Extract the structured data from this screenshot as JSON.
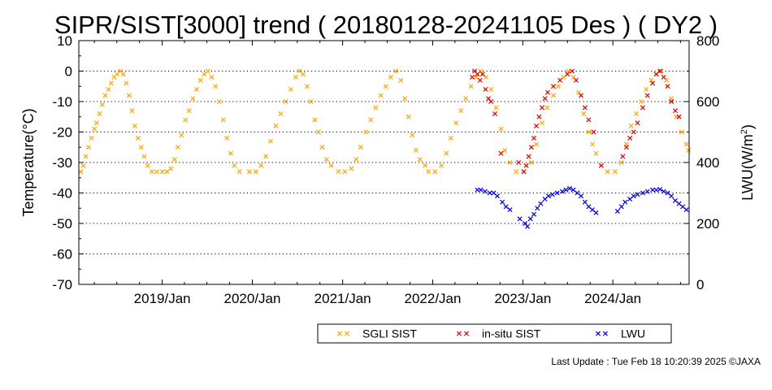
{
  "chart_data": {
    "type": "scatter",
    "title": "SIPR/SIST[3000] trend ( 20180128-20241105 Des ) ( DY2 )",
    "ylabel": "Temperature(°C)",
    "y2label_main": "LWU(W/m",
    "y2label_sup": "2",
    "y2label_end": ")",
    "ylim": [
      -70,
      10
    ],
    "y2lim": [
      0,
      800
    ],
    "xlim": [
      "2018-01-28",
      "2024-11-05"
    ],
    "yticks": [
      "10",
      "0",
      "-10",
      "-20",
      "-30",
      "-40",
      "-50",
      "-60",
      "-70"
    ],
    "y2ticks": [
      "800",
      "600",
      "400",
      "200",
      "0"
    ],
    "xticks": [
      "2019/Jan",
      "2020/Jan",
      "2021/Jan",
      "2022/Jan",
      "2023/Jan",
      "2024/Jan"
    ],
    "grid": true,
    "legend_position": "bottom",
    "series": [
      {
        "name": "SGLI SIST",
        "color": "#ffa500",
        "axis": "left",
        "points": [
          [
            "2018-02-05",
            -33
          ],
          [
            "2018-02-15",
            -31
          ],
          [
            "2018-02-25",
            -28
          ],
          [
            "2018-03-08",
            -25
          ],
          [
            "2018-03-20",
            -22
          ],
          [
            "2018-04-01",
            -19
          ],
          [
            "2018-04-10",
            -17
          ],
          [
            "2018-04-22",
            -14
          ],
          [
            "2018-05-03",
            -11
          ],
          [
            "2018-05-15",
            -8
          ],
          [
            "2018-05-28",
            -6
          ],
          [
            "2018-06-08",
            -4
          ],
          [
            "2018-06-20",
            -2
          ],
          [
            "2018-07-02",
            -1
          ],
          [
            "2018-07-15",
            0
          ],
          [
            "2018-07-27",
            -1
          ],
          [
            "2018-08-08",
            -4
          ],
          [
            "2018-08-20",
            -8
          ],
          [
            "2018-09-01",
            -13
          ],
          [
            "2018-09-12",
            -18
          ],
          [
            "2018-09-25",
            -22
          ],
          [
            "2018-10-08",
            -25
          ],
          [
            "2018-10-20",
            -28
          ],
          [
            "2018-11-03",
            -31
          ],
          [
            "2018-11-20",
            -33
          ],
          [
            "2018-12-10",
            -33
          ],
          [
            "2019-01-02",
            -33
          ],
          [
            "2019-01-20",
            -33
          ],
          [
            "2019-02-05",
            -32
          ],
          [
            "2019-02-20",
            -29
          ],
          [
            "2019-03-05",
            -25
          ],
          [
            "2019-03-20",
            -21
          ],
          [
            "2019-04-05",
            -16
          ],
          [
            "2019-04-20",
            -13
          ],
          [
            "2019-05-05",
            -9
          ],
          [
            "2019-05-20",
            -6
          ],
          [
            "2019-06-05",
            -3
          ],
          [
            "2019-06-20",
            -1
          ],
          [
            "2019-07-05",
            0
          ],
          [
            "2019-07-20",
            -2
          ],
          [
            "2019-08-05",
            -5
          ],
          [
            "2019-08-20",
            -10
          ],
          [
            "2019-09-05",
            -16
          ],
          [
            "2019-09-20",
            -22
          ],
          [
            "2019-10-05",
            -27
          ],
          [
            "2019-10-20",
            -31
          ],
          [
            "2019-11-10",
            -33
          ],
          [
            "2019-12-20",
            -33
          ],
          [
            "2020-01-15",
            -33
          ],
          [
            "2020-02-05",
            -31
          ],
          [
            "2020-02-25",
            -28
          ],
          [
            "2020-03-15",
            -23
          ],
          [
            "2020-04-05",
            -18
          ],
          [
            "2020-04-25",
            -14
          ],
          [
            "2020-05-15",
            -10
          ],
          [
            "2020-06-05",
            -6
          ],
          [
            "2020-06-25",
            -2
          ],
          [
            "2020-07-10",
            0
          ],
          [
            "2020-07-25",
            -1
          ],
          [
            "2020-08-10",
            -5
          ],
          [
            "2020-08-25",
            -10
          ],
          [
            "2020-09-10",
            -16
          ],
          [
            "2020-09-25",
            -20
          ],
          [
            "2020-10-10",
            -25
          ],
          [
            "2020-10-28",
            -29
          ],
          [
            "2020-11-15",
            -31
          ],
          [
            "2020-12-15",
            -33
          ],
          [
            "2021-01-10",
            -33
          ],
          [
            "2021-02-05",
            -32
          ],
          [
            "2021-02-25",
            -29
          ],
          [
            "2021-03-15",
            -25
          ],
          [
            "2021-04-05",
            -20
          ],
          [
            "2021-04-25",
            -16
          ],
          [
            "2021-05-15",
            -12
          ],
          [
            "2021-06-05",
            -8
          ],
          [
            "2021-06-25",
            -5
          ],
          [
            "2021-07-15",
            -2
          ],
          [
            "2021-08-05",
            0
          ],
          [
            "2021-08-25",
            -3
          ],
          [
            "2021-09-10",
            -9
          ],
          [
            "2021-09-25",
            -15
          ],
          [
            "2021-10-10",
            -21
          ],
          [
            "2021-10-25",
            -26
          ],
          [
            "2021-11-10",
            -29
          ],
          [
            "2021-12-01",
            -31
          ],
          [
            "2021-12-15",
            -33
          ],
          [
            "2022-01-10",
            -33
          ],
          [
            "2022-02-05",
            -31
          ],
          [
            "2022-02-25",
            -27
          ],
          [
            "2022-03-15",
            -22
          ],
          [
            "2022-04-05",
            -17
          ],
          [
            "2022-04-25",
            -13
          ],
          [
            "2022-05-15",
            -9
          ],
          [
            "2022-06-05",
            -5
          ],
          [
            "2022-06-25",
            -2
          ],
          [
            "2022-07-15",
            0
          ],
          [
            "2022-08-05",
            -2
          ],
          [
            "2022-08-25",
            -6
          ],
          [
            "2022-09-15",
            -12
          ],
          [
            "2022-10-05",
            -19
          ],
          [
            "2022-10-20",
            -26
          ],
          [
            "2022-11-10",
            -30
          ],
          [
            "2022-12-05",
            -33
          ],
          [
            "2023-01-05",
            -33
          ],
          [
            "2023-02-05",
            -30
          ],
          [
            "2023-02-25",
            -24
          ],
          [
            "2023-03-20",
            -17
          ],
          [
            "2023-04-10",
            -12
          ],
          [
            "2023-05-05",
            -8
          ],
          [
            "2023-05-25",
            -5
          ],
          [
            "2023-06-15",
            -2
          ],
          [
            "2023-07-05",
            0
          ],
          [
            "2023-07-25",
            -2
          ],
          [
            "2023-08-15",
            -7
          ],
          [
            "2023-09-05",
            -14
          ],
          [
            "2023-09-25",
            -20
          ],
          [
            "2023-10-10",
            -24
          ],
          [
            "2023-10-25",
            -27
          ],
          [
            "2023-11-15",
            -31
          ],
          [
            "2023-12-10",
            -33
          ],
          [
            "2024-01-10",
            -33
          ],
          [
            "2024-02-05",
            -30
          ],
          [
            "2024-02-25",
            -24
          ],
          [
            "2024-03-15",
            -18
          ],
          [
            "2024-04-05",
            -14
          ],
          [
            "2024-04-25",
            -10
          ],
          [
            "2024-05-15",
            -6
          ],
          [
            "2024-06-05",
            -3
          ],
          [
            "2024-06-25",
            -1
          ],
          [
            "2024-07-15",
            0
          ],
          [
            "2024-08-05",
            -3
          ],
          [
            "2024-08-25",
            -9
          ],
          [
            "2024-09-15",
            -15
          ],
          [
            "2024-10-05",
            -20
          ],
          [
            "2024-10-25",
            -24
          ],
          [
            "2024-11-03",
            -26
          ]
        ]
      },
      {
        "name": "in-situ SIST",
        "color": "#e00000",
        "axis": "left",
        "points": [
          [
            "2022-06-10",
            -2
          ],
          [
            "2022-06-20",
            0
          ],
          [
            "2022-07-01",
            -1
          ],
          [
            "2022-07-12",
            -3
          ],
          [
            "2022-07-22",
            -1
          ],
          [
            "2022-08-03",
            -6
          ],
          [
            "2022-08-15",
            -9
          ],
          [
            "2022-08-25",
            -10
          ],
          [
            "2022-09-10",
            -14
          ],
          [
            "2022-10-05",
            -27
          ],
          [
            "2022-12-15",
            -30
          ],
          [
            "2023-01-05",
            -33
          ],
          [
            "2023-01-15",
            -31
          ],
          [
            "2023-01-25",
            -28
          ],
          [
            "2023-02-05",
            -25
          ],
          [
            "2023-02-15",
            -22
          ],
          [
            "2023-02-25",
            -18
          ],
          [
            "2023-03-08",
            -15
          ],
          [
            "2023-03-20",
            -12
          ],
          [
            "2023-04-01",
            -9
          ],
          [
            "2023-04-12",
            -7
          ],
          [
            "2023-05-05",
            -5
          ],
          [
            "2023-06-01",
            -3
          ],
          [
            "2023-07-01",
            -1
          ],
          [
            "2023-07-20",
            0
          ],
          [
            "2023-08-05",
            -3
          ],
          [
            "2023-08-25",
            -8
          ],
          [
            "2023-09-10",
            -12
          ],
          [
            "2023-09-25",
            -16
          ],
          [
            "2023-10-15",
            -20
          ],
          [
            "2023-11-15",
            -31
          ],
          [
            "2024-02-10",
            -28
          ],
          [
            "2024-02-25",
            -25
          ],
          [
            "2024-03-10",
            -22
          ],
          [
            "2024-03-25",
            -20
          ],
          [
            "2024-04-10",
            -17
          ],
          [
            "2024-05-01",
            -12
          ],
          [
            "2024-05-20",
            -8
          ],
          [
            "2024-06-10",
            -4
          ],
          [
            "2024-06-25",
            -1
          ],
          [
            "2024-07-10",
            0
          ],
          [
            "2024-07-25",
            -2
          ],
          [
            "2024-08-10",
            -5
          ],
          [
            "2024-08-25",
            -10
          ],
          [
            "2024-09-10",
            -13
          ],
          [
            "2024-09-25",
            -15
          ]
        ]
      },
      {
        "name": "LWU",
        "color": "#0000dd",
        "axis": "right",
        "points": [
          [
            "2022-07-01",
            310
          ],
          [
            "2022-07-15",
            310
          ],
          [
            "2022-08-01",
            305
          ],
          [
            "2022-08-20",
            300
          ],
          [
            "2022-09-05",
            300
          ],
          [
            "2022-09-20",
            290
          ],
          [
            "2022-10-10",
            270
          ],
          [
            "2022-10-25",
            255
          ],
          [
            "2022-11-10",
            245
          ],
          [
            "2022-12-20",
            215
          ],
          [
            "2023-01-10",
            200
          ],
          [
            "2023-01-20",
            190
          ],
          [
            "2023-02-01",
            215
          ],
          [
            "2023-02-15",
            230
          ],
          [
            "2023-03-01",
            250
          ],
          [
            "2023-03-15",
            265
          ],
          [
            "2023-04-01",
            280
          ],
          [
            "2023-04-15",
            290
          ],
          [
            "2023-05-01",
            295
          ],
          [
            "2023-05-20",
            300
          ],
          [
            "2023-06-10",
            305
          ],
          [
            "2023-06-25",
            310
          ],
          [
            "2023-07-10",
            315
          ],
          [
            "2023-07-25",
            310
          ],
          [
            "2023-08-10",
            300
          ],
          [
            "2023-08-25",
            290
          ],
          [
            "2023-09-10",
            270
          ],
          [
            "2023-09-25",
            255
          ],
          [
            "2023-10-10",
            245
          ],
          [
            "2023-10-25",
            235
          ],
          [
            "2024-01-20",
            240
          ],
          [
            "2024-02-05",
            255
          ],
          [
            "2024-02-20",
            270
          ],
          [
            "2024-03-10",
            280
          ],
          [
            "2024-03-25",
            290
          ],
          [
            "2024-04-10",
            295
          ],
          [
            "2024-05-01",
            300
          ],
          [
            "2024-05-20",
            305
          ],
          [
            "2024-06-10",
            310
          ],
          [
            "2024-06-25",
            310
          ],
          [
            "2024-07-10",
            312
          ],
          [
            "2024-07-25",
            305
          ],
          [
            "2024-08-10",
            300
          ],
          [
            "2024-08-25",
            290
          ],
          [
            "2024-09-10",
            275
          ],
          [
            "2024-09-25",
            265
          ],
          [
            "2024-10-10",
            255
          ],
          [
            "2024-10-25",
            245
          ]
        ]
      }
    ]
  },
  "footer": "Last Update : Tue Feb 18 10:20:39 2025  ©JAXA"
}
